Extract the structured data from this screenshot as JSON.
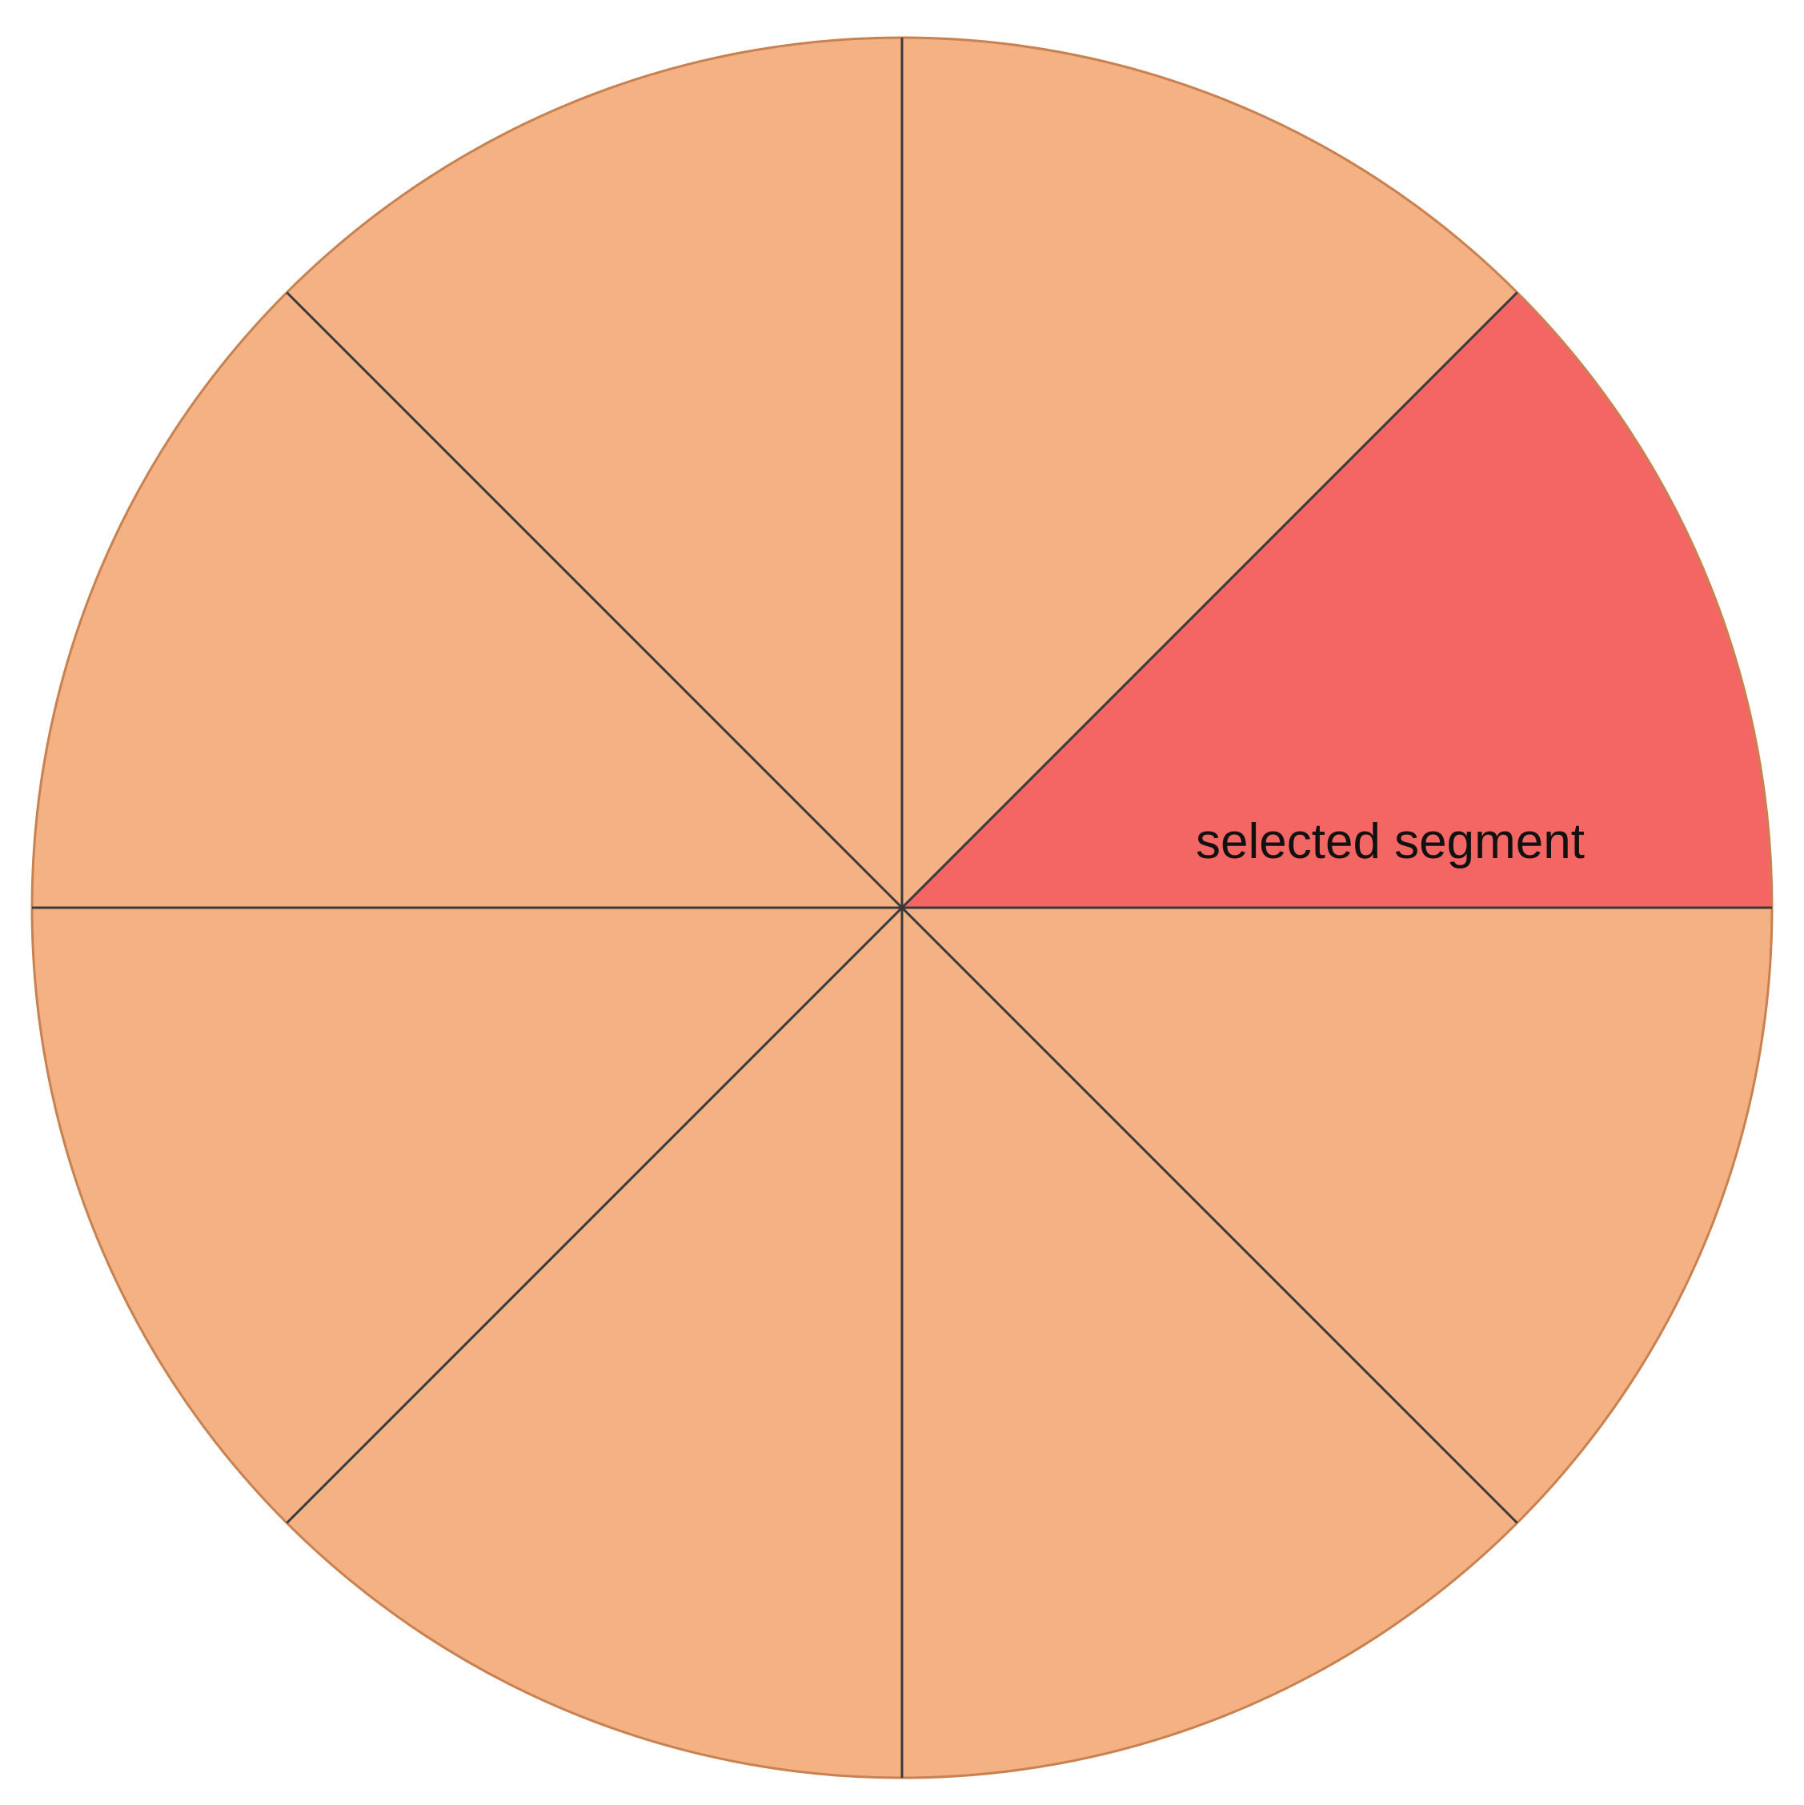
{
  "diagram": {
    "segment_count": 8,
    "selected_segment_index": 0,
    "selected_label": "selected segment",
    "colors": {
      "background": "#ffffff",
      "segment_fill": "#f3b184",
      "selected_fill": "#f46663",
      "outline": "#c98150",
      "divider": "#3a3a3a",
      "label": "#111111"
    }
  }
}
